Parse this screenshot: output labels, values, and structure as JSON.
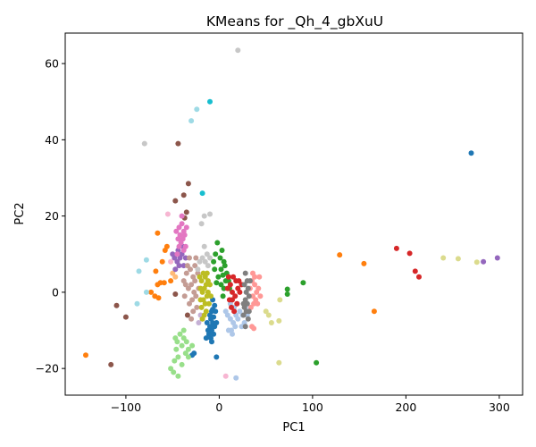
{
  "chart_data": {
    "type": "scatter",
    "title": "KMeans for _Qh_4_gbXuU",
    "xlabel": "PC1",
    "ylabel": "PC2",
    "xlim": [
      -165,
      325
    ],
    "ylim": [
      -27,
      68
    ],
    "grid": false,
    "xticks": [
      -100,
      0,
      100,
      200,
      300
    ],
    "yticks": [
      -20,
      0,
      20,
      40,
      60
    ],
    "palette": [
      "#1f77b4",
      "#aec7e8",
      "#ff7f0e",
      "#ffbb78",
      "#2ca02c",
      "#98df8a",
      "#d62728",
      "#ff9896",
      "#9467bd",
      "#c5b0d5",
      "#8c564b",
      "#c49c94",
      "#e377c2",
      "#f7b6d2",
      "#7f7f7f",
      "#c7c7c7",
      "#bcbd22",
      "#dbdb8d",
      "#17becf",
      "#9edae5"
    ],
    "series": [
      {
        "color": "#1f77b4",
        "points": [
          [
            -7,
            -2
          ],
          [
            -5,
            -3.5
          ],
          [
            -8,
            -5
          ],
          [
            -6,
            -6.5
          ],
          [
            -9,
            -7
          ],
          [
            -7,
            -8
          ],
          [
            -10,
            -9
          ],
          [
            -8,
            -10
          ],
          [
            -6,
            -11
          ],
          [
            -11,
            -11
          ],
          [
            -9,
            -12
          ],
          [
            -12,
            -10
          ],
          [
            -5,
            -9
          ],
          [
            -13,
            -8
          ],
          [
            -7,
            -4.5
          ],
          [
            -4,
            -5
          ],
          [
            -10,
            -6
          ],
          [
            -3,
            -8
          ],
          [
            -14,
            -12
          ],
          [
            -8,
            -13
          ],
          [
            -27,
            -16
          ],
          [
            -29,
            -16.5
          ],
          [
            -3,
            -17
          ],
          [
            270,
            36.5
          ]
        ]
      },
      {
        "color": "#aec7e8",
        "points": [
          [
            7,
            -5
          ],
          [
            9,
            -6
          ],
          [
            12,
            -7
          ],
          [
            15,
            -8
          ],
          [
            17,
            -9
          ],
          [
            13,
            -10
          ],
          [
            10,
            -10
          ],
          [
            14,
            -11
          ],
          [
            18,
            -6
          ],
          [
            20,
            -7
          ],
          [
            22,
            -5
          ],
          [
            25,
            -6
          ],
          [
            27,
            -8
          ],
          [
            24,
            -9
          ],
          [
            16,
            -4
          ],
          [
            19,
            -3
          ],
          [
            12,
            -3
          ],
          [
            28,
            -4
          ],
          [
            30,
            -6
          ],
          [
            18,
            -22.5
          ]
        ]
      },
      {
        "color": "#ff7f0e",
        "points": [
          [
            -58,
            11
          ],
          [
            -56,
            12
          ],
          [
            -66,
            15.5
          ],
          [
            -61,
            8
          ],
          [
            -68,
            5.5
          ],
          [
            -63,
            2.5
          ],
          [
            -59,
            2.5
          ],
          [
            -66,
            2
          ],
          [
            -73,
            0
          ],
          [
            -69,
            -1
          ],
          [
            -65,
            -1.5
          ],
          [
            -143,
            -16.5
          ],
          [
            129,
            9.8
          ],
          [
            155,
            7.5
          ],
          [
            166,
            -5
          ],
          [
            -52,
            3
          ]
        ]
      },
      {
        "color": "#ffbb78",
        "points": [
          [
            -50,
            5
          ],
          [
            -47,
            4
          ]
        ]
      },
      {
        "color": "#2ca02c",
        "points": [
          [
            -2,
            13
          ],
          [
            -4,
            10
          ],
          [
            1,
            9
          ],
          [
            5,
            8
          ],
          [
            -5,
            6
          ],
          [
            2,
            6
          ],
          [
            4,
            4.5
          ],
          [
            -1,
            4
          ],
          [
            7,
            3
          ],
          [
            2,
            2
          ],
          [
            5,
            1
          ],
          [
            -3,
            2.5
          ],
          [
            8,
            5
          ],
          [
            10,
            3
          ],
          [
            6,
            7
          ],
          [
            3,
            11
          ],
          [
            -6,
            8
          ],
          [
            11,
            1
          ],
          [
            4,
            -1
          ],
          [
            90,
            2.5
          ],
          [
            73,
            -0.5
          ],
          [
            73,
            0.8
          ],
          [
            104,
            -18.5
          ]
        ]
      },
      {
        "color": "#98df8a",
        "points": [
          [
            -42,
            -11
          ],
          [
            -38,
            -12
          ],
          [
            -35,
            -13
          ],
          [
            -40,
            -14
          ],
          [
            -45,
            -13
          ],
          [
            -46,
            -15
          ],
          [
            -36,
            -16
          ],
          [
            -33,
            -17
          ],
          [
            -44,
            -17
          ],
          [
            -40,
            -19
          ],
          [
            -48,
            -18
          ],
          [
            -52,
            -20
          ],
          [
            -49,
            -21
          ],
          [
            -44,
            -22
          ],
          [
            -33,
            -15
          ],
          [
            -38,
            -10
          ],
          [
            -47,
            -12
          ],
          [
            -29,
            -14
          ]
        ]
      },
      {
        "color": "#d62728",
        "points": [
          [
            15,
            4
          ],
          [
            18,
            3
          ],
          [
            12,
            2
          ],
          [
            20,
            1
          ],
          [
            14,
            0
          ],
          [
            17,
            -1
          ],
          [
            11,
            -2
          ],
          [
            19,
            -3
          ],
          [
            13,
            -4
          ],
          [
            16,
            -5
          ],
          [
            21,
            3
          ],
          [
            10,
            4
          ],
          [
            22,
            0
          ],
          [
            9,
            1
          ],
          [
            14,
            -2
          ],
          [
            24,
            2
          ],
          [
            190,
            11.5
          ],
          [
            204,
            10.2
          ],
          [
            210,
            5.5
          ],
          [
            214,
            4
          ]
        ]
      },
      {
        "color": "#ff9896",
        "points": [
          [
            36,
            5
          ],
          [
            35,
            3
          ],
          [
            38,
            2
          ],
          [
            42,
            1
          ],
          [
            40,
            0
          ],
          [
            36,
            -1
          ],
          [
            39,
            -2
          ],
          [
            37,
            -3
          ],
          [
            34,
            -4
          ],
          [
            41,
            -3
          ],
          [
            44,
            -1
          ],
          [
            33,
            1
          ],
          [
            38,
            4
          ],
          [
            43,
            4
          ],
          [
            37,
            -9.5
          ],
          [
            35,
            -9
          ]
        ]
      },
      {
        "color": "#9467bd",
        "points": [
          [
            -40,
            10
          ],
          [
            -42,
            9
          ],
          [
            -45,
            8
          ],
          [
            -38,
            7
          ],
          [
            -43,
            7
          ],
          [
            -47,
            6
          ],
          [
            -36,
            9
          ],
          [
            -48,
            9
          ],
          [
            -50,
            10
          ],
          [
            -39,
            12
          ],
          [
            -44,
            11
          ],
          [
            283,
            8
          ],
          [
            298,
            9
          ]
        ]
      },
      {
        "color": "#c5b0d5",
        "points": [
          [
            -20,
            -6
          ],
          [
            -18,
            -7
          ],
          [
            -22,
            -8
          ]
        ]
      },
      {
        "color": "#8c564b",
        "points": [
          [
            -44,
            39
          ],
          [
            -33,
            28.5
          ],
          [
            -35,
            21
          ],
          [
            -37,
            19.5
          ],
          [
            -38,
            25.5
          ],
          [
            -47,
            24
          ],
          [
            -47,
            -0.5
          ],
          [
            -34,
            -6
          ],
          [
            -110,
            -3.5
          ],
          [
            -100,
            -6.5
          ],
          [
            -116,
            -19
          ]
        ]
      },
      {
        "color": "#c49c94",
        "points": [
          [
            -34,
            7
          ],
          [
            -31,
            6
          ],
          [
            -28,
            4
          ],
          [
            -26,
            3
          ],
          [
            -30,
            2
          ],
          [
            -33,
            1
          ],
          [
            -27,
            0
          ],
          [
            -25,
            -1
          ],
          [
            -29,
            -2
          ],
          [
            -32,
            -3
          ],
          [
            -24,
            -4
          ],
          [
            -28,
            -5
          ],
          [
            -35,
            5
          ],
          [
            -23,
            5
          ],
          [
            -26,
            7
          ],
          [
            -30,
            -7
          ],
          [
            -36,
            2
          ],
          [
            -22,
            1
          ],
          [
            -38,
            3
          ],
          [
            -37,
            -1
          ],
          [
            -25,
            9
          ],
          [
            -32,
            9
          ]
        ]
      },
      {
        "color": "#e377c2",
        "points": [
          [
            -40,
            18
          ],
          [
            -38,
            16
          ],
          [
            -42,
            15
          ],
          [
            -44,
            14
          ],
          [
            -39,
            14
          ],
          [
            -41,
            13
          ],
          [
            -36,
            12
          ],
          [
            -43,
            12
          ],
          [
            -45,
            10
          ],
          [
            -38,
            11
          ],
          [
            -37,
            15
          ],
          [
            -46,
            16
          ],
          [
            -35,
            17
          ],
          [
            -40,
            20
          ],
          [
            -43,
            17
          ]
        ]
      },
      {
        "color": "#f7b6d2",
        "points": [
          [
            -55,
            20.5
          ],
          [
            -52,
            8
          ],
          [
            7,
            -22
          ]
        ]
      },
      {
        "color": "#7f7f7f",
        "points": [
          [
            28,
            5
          ],
          [
            30,
            3
          ],
          [
            27,
            2
          ],
          [
            31,
            1
          ],
          [
            29,
            0
          ],
          [
            32,
            -1
          ],
          [
            28,
            -2
          ],
          [
            30,
            -3
          ],
          [
            27,
            -4
          ],
          [
            29,
            -5
          ],
          [
            26,
            -6
          ],
          [
            31,
            -7
          ],
          [
            28,
            -9
          ],
          [
            26,
            -3
          ],
          [
            33,
            3
          ],
          [
            32,
            -5
          ]
        ]
      },
      {
        "color": "#c7c7c7",
        "points": [
          [
            -16,
            12
          ],
          [
            -13,
            10
          ],
          [
            -18,
            9
          ],
          [
            -21,
            8
          ],
          [
            -15,
            8
          ],
          [
            -12,
            7
          ],
          [
            -10,
            9
          ],
          [
            -16,
            20
          ],
          [
            -19,
            18
          ],
          [
            -23,
            6
          ],
          [
            -10,
            20.5
          ],
          [
            20,
            63.5
          ],
          [
            -80,
            39
          ]
        ]
      },
      {
        "color": "#bcbd22",
        "points": [
          [
            -17,
            5
          ],
          [
            -15,
            4
          ],
          [
            -19,
            3
          ],
          [
            -14,
            2
          ],
          [
            -16,
            1
          ],
          [
            -18,
            0
          ],
          [
            -13,
            -1
          ],
          [
            -17,
            -2
          ],
          [
            -15,
            -3
          ],
          [
            -19,
            -4
          ],
          [
            -14,
            -5
          ],
          [
            -16,
            -6
          ],
          [
            -12,
            3
          ],
          [
            -20,
            1
          ],
          [
            -11,
            -3
          ],
          [
            -20,
            -2
          ],
          [
            -13,
            5
          ],
          [
            -21,
            4
          ],
          [
            -18,
            -7
          ],
          [
            -12,
            0
          ],
          [
            -10,
            2
          ],
          [
            -9,
            -1
          ]
        ]
      },
      {
        "color": "#dbdb8d",
        "points": [
          [
            240,
            9
          ],
          [
            256,
            8.8
          ],
          [
            276,
            7.9
          ],
          [
            65,
            -2
          ],
          [
            53,
            -6
          ],
          [
            56,
            -8
          ],
          [
            64,
            -7.5
          ],
          [
            64,
            -18.5
          ],
          [
            50,
            -5
          ]
        ]
      },
      {
        "color": "#17becf",
        "points": [
          [
            -10,
            50
          ],
          [
            -18,
            26
          ]
        ]
      },
      {
        "color": "#9edae5",
        "points": [
          [
            -24,
            48
          ],
          [
            -30,
            45
          ],
          [
            -78,
            8.5
          ],
          [
            -86,
            5.5
          ],
          [
            -88,
            -3
          ],
          [
            -78,
            0
          ]
        ]
      }
    ]
  }
}
